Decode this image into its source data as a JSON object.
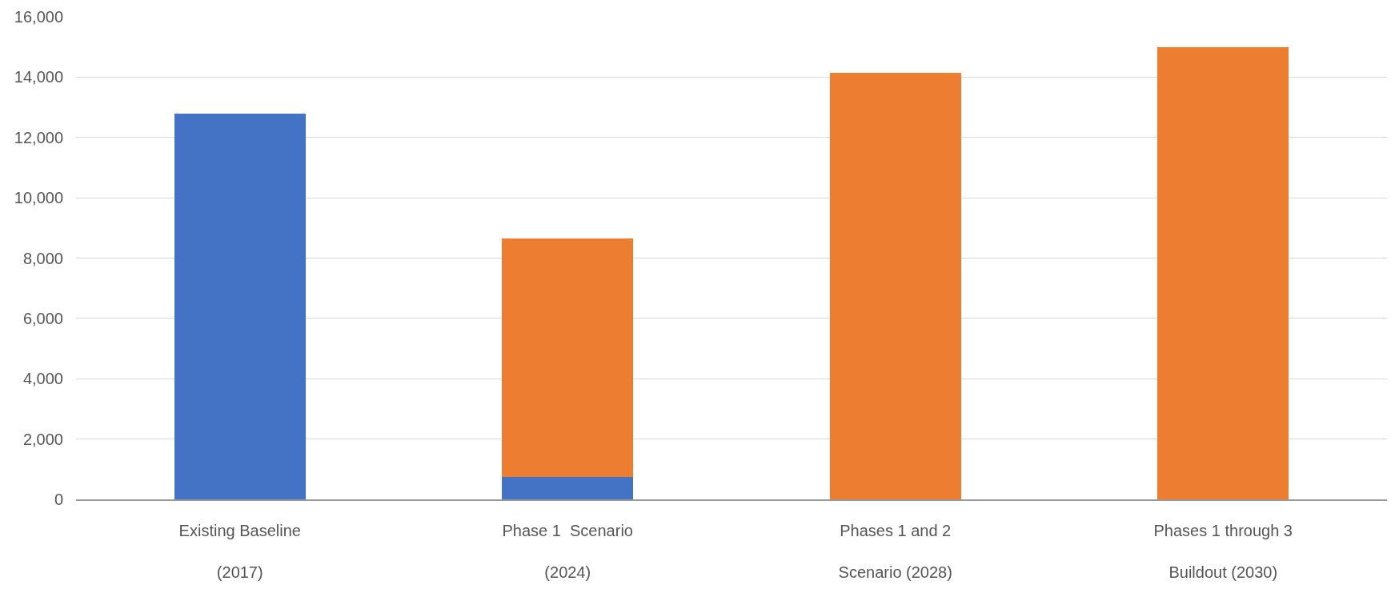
{
  "chart_data": {
    "type": "bar",
    "stacked": true,
    "categories": [
      "Existing Baseline\n(2017)",
      "Phase 1  Scenario\n(2024)",
      "Phases 1 and 2\nScenario (2028)",
      "Phases 1 through 3\nBuildout (2030)"
    ],
    "series": [
      {
        "color": "#4472c4",
        "values": [
          12800,
          750,
          null,
          null
        ]
      },
      {
        "color": "#ed7d31",
        "values": [
          null,
          7900,
          14150,
          15000
        ]
      }
    ],
    "ylim": [
      0,
      16000
    ],
    "yticks": [
      {
        "value": 0,
        "label": "0"
      },
      {
        "value": 2000,
        "label": "2,000"
      },
      {
        "value": 4000,
        "label": "4,000"
      },
      {
        "value": 6000,
        "label": "6,000"
      },
      {
        "value": 8000,
        "label": "8,000"
      },
      {
        "value": 10000,
        "label": "10,000"
      },
      {
        "value": 12000,
        "label": "12,000"
      },
      {
        "value": 14000,
        "label": "14,000"
      },
      {
        "value": 16000,
        "label": "16,000"
      }
    ],
    "grid": "y"
  }
}
